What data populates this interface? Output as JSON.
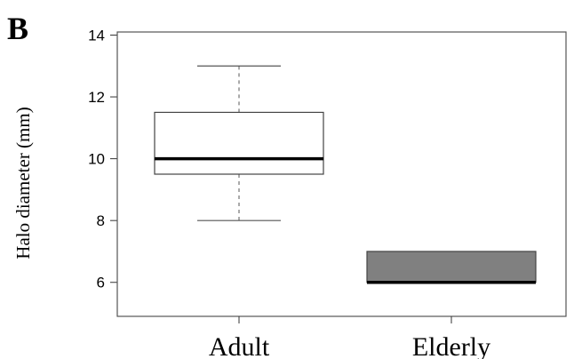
{
  "panel_label": "B",
  "chart_data": {
    "type": "boxplot",
    "title": "",
    "xlabel": "",
    "ylabel": "Halo diameter (mm)",
    "ylim": [
      4.9,
      14.1
    ],
    "yticks": [
      6,
      8,
      10,
      12,
      14
    ],
    "ytick_labels": [
      "6",
      "8",
      "10",
      "12",
      "14"
    ],
    "categories": [
      "Adult",
      "Elderly"
    ],
    "boxes": [
      {
        "category": "Adult",
        "whisker_low": 8,
        "q1": 9.5,
        "median": 10,
        "q3": 11.5,
        "whisker_high": 13,
        "fill": "#ffffff"
      },
      {
        "category": "Elderly",
        "whisker_low": 6,
        "q1": 6,
        "median": 6,
        "q3": 7,
        "whisker_high": 7,
        "fill": "#808080"
      }
    ],
    "grid": false,
    "legend": "none"
  }
}
